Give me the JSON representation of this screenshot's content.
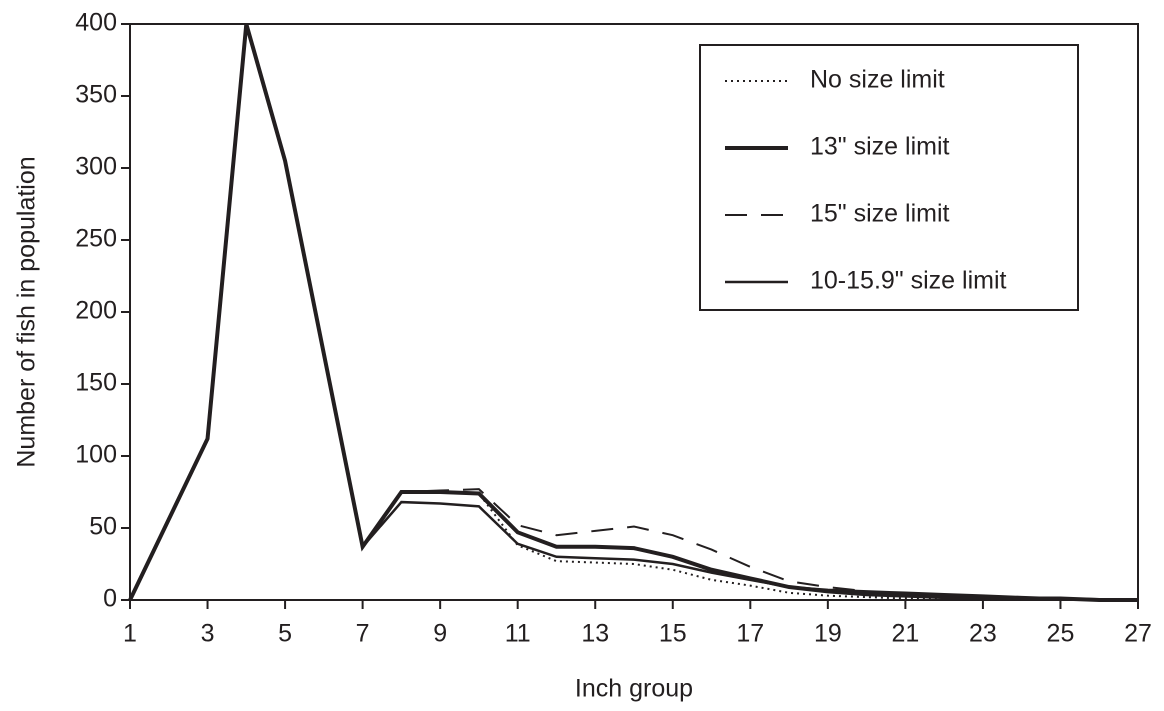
{
  "chart_data": {
    "type": "line",
    "xlabel": "Inch group",
    "ylabel": "Number of fish in population",
    "x": [
      1,
      3,
      4,
      5,
      7,
      8,
      9,
      10,
      11,
      12,
      13,
      14,
      15,
      16,
      17,
      18,
      19,
      20,
      21,
      22,
      23,
      24,
      25,
      26,
      27
    ],
    "series": [
      {
        "name": "No size limit",
        "color": "#231f20",
        "style": "dotted",
        "width": 2,
        "values": [
          0,
          112,
          400,
          305,
          37,
          75,
          75,
          74,
          38,
          27,
          26,
          25,
          21,
          14,
          10,
          5,
          3,
          2,
          1,
          1,
          0.5,
          0.5,
          0.5,
          0,
          0
        ]
      },
      {
        "name": "13\" size limit",
        "color": "#231f20",
        "style": "solid",
        "width": 4,
        "values": [
          0,
          112,
          400,
          305,
          37,
          75,
          75,
          74,
          47,
          37,
          37,
          36,
          30,
          21,
          15,
          9,
          6,
          4,
          3,
          2,
          2,
          1,
          1,
          0,
          0
        ]
      },
      {
        "name": "15\" size limit",
        "color": "#231f20",
        "style": "dashed",
        "width": 2,
        "values": [
          0,
          112,
          400,
          305,
          37,
          75,
          76,
          77,
          52,
          45,
          48,
          51,
          45,
          35,
          23,
          13,
          9,
          6,
          4,
          3,
          2,
          1,
          1,
          0,
          0
        ]
      },
      {
        "name": "10-15.9\" size limit",
        "color": "#231f20",
        "style": "solid",
        "width": 2.5,
        "values": [
          0,
          112,
          400,
          305,
          37,
          68,
          67,
          65,
          39,
          30,
          29,
          28,
          25,
          19,
          14,
          9,
          7,
          6,
          5,
          4,
          3,
          2,
          1,
          0.5,
          0
        ]
      }
    ],
    "xlim": [
      1,
      27
    ],
    "xticks": [
      1,
      3,
      5,
      7,
      9,
      11,
      13,
      15,
      17,
      19,
      21,
      23,
      25,
      27
    ],
    "ylim": [
      0,
      400
    ],
    "yticks": [
      0,
      50,
      100,
      150,
      200,
      250,
      300,
      350,
      400
    ],
    "legend": "upper right"
  }
}
